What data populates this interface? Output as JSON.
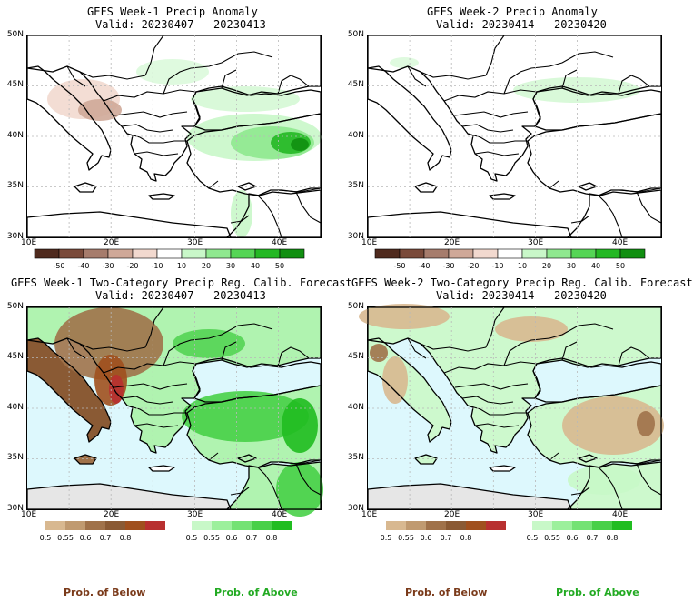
{
  "colors": {
    "coast": "#000000",
    "sea_forecast": "#ddf8fd",
    "masked_gray": "#e6e6e6",
    "grid": "#b8b8b8",
    "below_label": "#7a3a1a",
    "above_label": "#22aa22"
  },
  "panels": [
    {
      "title1": "GEFS Week-1 Precip Anomaly",
      "title2": "Valid: 20230407 - 20230413",
      "type": "anomaly",
      "lat_labels": [
        "50N",
        "45N",
        "40N",
        "35N",
        "30N"
      ],
      "lon_labels": [
        "10E",
        "20E",
        "30E",
        "40E"
      ]
    },
    {
      "title1": "GEFS Week-2 Precip Anomaly",
      "title2": "Valid: 20230414 - 20230420",
      "type": "anomaly",
      "lat_labels": [
        "50N",
        "45N",
        "40N",
        "35N",
        "30N"
      ],
      "lon_labels": [
        "10E",
        "20E",
        "30E",
        "40E"
      ]
    },
    {
      "title1": "GEFS Week-1 Two-Category Precip Reg. Calib. Forecast",
      "title2": "Valid: 20230407 - 20230413",
      "type": "prob",
      "lat_labels": [
        "50N",
        "45N",
        "40N",
        "35N",
        "30N"
      ],
      "lon_labels": [
        "10E",
        "20E",
        "30E",
        "40E"
      ]
    },
    {
      "title1": "GEFS Week-2 Two-Category Precip Reg. Calib. Forecast",
      "title2": "Valid: 20230414 - 20230420",
      "type": "prob",
      "lat_labels": [
        "50N",
        "45N",
        "40N",
        "35N",
        "30N"
      ],
      "lon_labels": [
        "10E",
        "20E",
        "30E",
        "40E"
      ]
    }
  ],
  "anomaly_colorbar": {
    "labels": [
      "-50",
      "-40",
      "-30",
      "-20",
      "-10",
      "10",
      "20",
      "30",
      "40",
      "50"
    ],
    "colors": [
      "#4f2a1e",
      "#7a4a3a",
      "#a67c6c",
      "#cfa898",
      "#f2d9cf",
      "#ffffff",
      "#c9f7c9",
      "#8fe88f",
      "#55d555",
      "#24b824",
      "#118f11"
    ]
  },
  "prob_colorbars": {
    "below": {
      "labels": [
        "0.5",
        "0.55",
        "0.6",
        "0.7",
        "0.8"
      ],
      "colors": [
        "#d8b890",
        "#c09a70",
        "#a0724a",
        "#8a5a34",
        "#a0501e",
        "#b83030"
      ]
    },
    "above": {
      "labels": [
        "0.5",
        "0.55",
        "0.6",
        "0.7",
        "0.8"
      ],
      "colors": [
        "#c8f8c8",
        "#9cf09c",
        "#74e274",
        "#48d048",
        "#20bd20"
      ]
    }
  },
  "footer": {
    "below_label": "Prob. of Below",
    "above_label": "Prob. of Above"
  }
}
